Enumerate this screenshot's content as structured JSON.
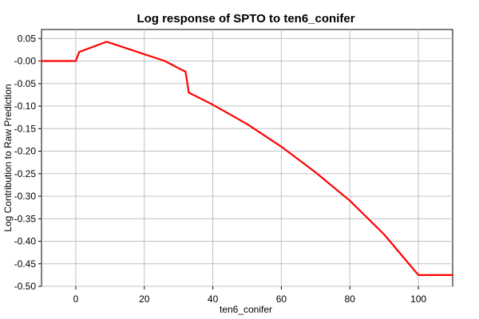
{
  "chart_data": {
    "type": "line",
    "title": "Log response of SPTO to ten6_conifer",
    "xlabel": "ten6_conifer",
    "ylabel": "Log Contribution to Raw Prediction",
    "xlim": [
      -10,
      110
    ],
    "ylim": [
      -0.5,
      0.07
    ],
    "xticks": [
      0,
      20,
      40,
      60,
      80,
      100
    ],
    "yticks": [
      0.05,
      0.0,
      -0.05,
      -0.1,
      -0.15,
      -0.2,
      -0.25,
      -0.3,
      -0.35,
      -0.4,
      -0.45,
      -0.5
    ],
    "xtick_labels": [
      "0",
      "20",
      "40",
      "60",
      "80",
      "100"
    ],
    "ytick_labels": [
      "0.05",
      "-0.00",
      "-0.05",
      "-0.10",
      "-0.15",
      "-0.20",
      "-0.25",
      "-0.30",
      "-0.35",
      "-0.40",
      "-0.45",
      "-0.50"
    ],
    "grid": true,
    "series": [
      {
        "color": "#ff0000",
        "points": [
          [
            -10,
            0.0
          ],
          [
            0,
            0.0
          ],
          [
            1,
            0.02
          ],
          [
            9,
            0.043
          ],
          [
            26,
            0.0
          ],
          [
            31,
            -0.02
          ],
          [
            32,
            -0.023
          ],
          [
            33,
            -0.07
          ],
          [
            40,
            -0.097
          ],
          [
            50,
            -0.14
          ],
          [
            60,
            -0.19
          ],
          [
            70,
            -0.247
          ],
          [
            80,
            -0.31
          ],
          [
            90,
            -0.385
          ],
          [
            100,
            -0.475
          ],
          [
            110,
            -0.475
          ]
        ]
      }
    ]
  }
}
